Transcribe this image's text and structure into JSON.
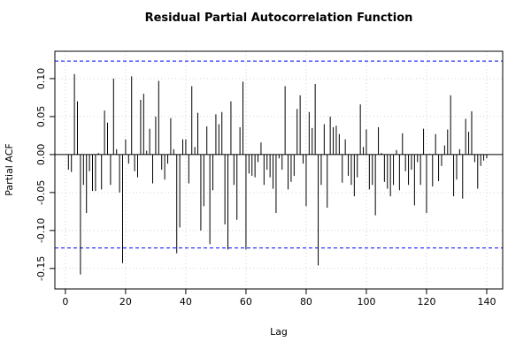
{
  "chart_data": {
    "type": "pacf",
    "title": "Residual Partial Autocorrelation Function",
    "x_label": "Lag",
    "y_label": "Partial ACF",
    "x": [
      1,
      2,
      3,
      4,
      5,
      6,
      7,
      8,
      9,
      10,
      11,
      12,
      13,
      14,
      15,
      16,
      17,
      18,
      19,
      20,
      21,
      22,
      23,
      24,
      25,
      26,
      27,
      28,
      29,
      30,
      31,
      32,
      33,
      34,
      35,
      36,
      37,
      38,
      39,
      40,
      41,
      42,
      43,
      44,
      45,
      46,
      47,
      48,
      49,
      50,
      51,
      52,
      53,
      54,
      55,
      56,
      57,
      58,
      59,
      60,
      61,
      62,
      63,
      64,
      65,
      66,
      67,
      68,
      69,
      70,
      71,
      72,
      73,
      74,
      75,
      76,
      77,
      78,
      79,
      80,
      81,
      82,
      83,
      84,
      85,
      86,
      87,
      88,
      89,
      90,
      91,
      92,
      93,
      94,
      95,
      96,
      97,
      98,
      99,
      100,
      101,
      102,
      103,
      104,
      105,
      106,
      107,
      108,
      109,
      110,
      111,
      112,
      113,
      114,
      115,
      116,
      117,
      118,
      119,
      120,
      121,
      122,
      123,
      124,
      125,
      126,
      127,
      128,
      129,
      130,
      131,
      132,
      133,
      134,
      135,
      136,
      137,
      138,
      139,
      140
    ],
    "values": [
      -0.02,
      -0.023,
      0.106,
      0.07,
      -0.158,
      -0.04,
      -0.077,
      -0.022,
      -0.048,
      -0.048,
      0.002,
      -0.046,
      0.058,
      0.042,
      -0.04,
      0.1,
      0.007,
      -0.05,
      -0.143,
      0.02,
      -0.012,
      0.103,
      -0.022,
      -0.03,
      0.072,
      0.08,
      0.005,
      0.034,
      -0.038,
      0.05,
      0.097,
      -0.02,
      -0.033,
      -0.012,
      0.048,
      0.007,
      -0.13,
      -0.096,
      0.02,
      0.02,
      -0.038,
      0.09,
      0.01,
      0.055,
      -0.1,
      -0.068,
      0.037,
      -0.118,
      -0.047,
      0.053,
      0.04,
      0.056,
      -0.092,
      -0.125,
      0.07,
      -0.04,
      -0.086,
      0.036,
      0.096,
      -0.125,
      -0.025,
      -0.028,
      -0.03,
      -0.01,
      0.016,
      -0.04,
      -0.02,
      -0.03,
      -0.045,
      -0.077,
      -0.005,
      -0.02,
      0.09,
      -0.046,
      -0.036,
      -0.028,
      0.06,
      0.078,
      -0.012,
      -0.068,
      0.056,
      0.035,
      0.093,
      -0.146,
      -0.04,
      0.04,
      -0.07,
      0.05,
      0.036,
      0.038,
      0.027,
      -0.037,
      0.02,
      -0.028,
      -0.04,
      -0.055,
      -0.03,
      0.066,
      0.01,
      0.033,
      -0.046,
      -0.04,
      -0.08,
      0.036,
      0.002,
      -0.036,
      -0.045,
      -0.055,
      -0.04,
      0.006,
      -0.047,
      0.028,
      -0.022,
      -0.04,
      -0.02,
      -0.067,
      -0.01,
      -0.04,
      0.034,
      -0.077,
      0.001,
      -0.042,
      0.027,
      -0.035,
      -0.015,
      0.012,
      0.033,
      0.078,
      -0.055,
      -0.033,
      0.007,
      -0.058,
      0.047,
      0.03,
      0.057,
      -0.01,
      -0.045,
      -0.015,
      -0.008,
      -0.005
    ],
    "color": "#000000",
    "conf_lines": [
      0.123,
      -0.123
    ],
    "conf_color": "#0000ff",
    "xlim": [
      -3.5,
      145.3
    ],
    "ylim": [
      -0.177,
      0.136
    ],
    "xticks": [
      0,
      20,
      40,
      60,
      80,
      100,
      120,
      140
    ],
    "yticks": [
      -0.15,
      {
        "value": -0.1,
        "label": "-0.10"
      },
      -0.05,
      {
        "value": 0,
        "label": "0.00"
      },
      0.05,
      {
        "value": 0.1,
        "label": "0.10"
      }
    ],
    "grid": true
  }
}
